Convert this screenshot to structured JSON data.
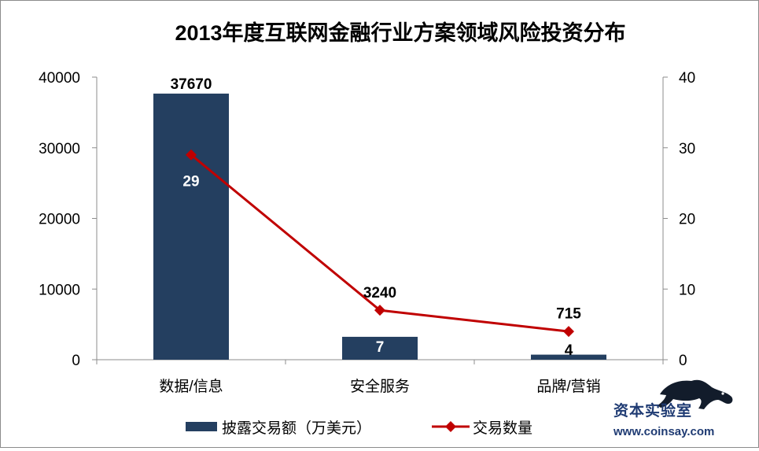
{
  "chart_data": {
    "type": "bar",
    "title": "2013年度互联网金融行业方案领域风险投资分布",
    "categories": [
      "数据/信息",
      "安全服务",
      "品牌/营销"
    ],
    "series": [
      {
        "name": "披露交易额（万美元）",
        "type": "bar",
        "axis": "left",
        "color": "#243f60",
        "values": [
          37670,
          3240,
          715
        ]
      },
      {
        "name": "交易数量",
        "type": "line",
        "axis": "right",
        "color": "#c00000",
        "marker": "diamond",
        "values": [
          29,
          7,
          4
        ]
      }
    ],
    "y_left": {
      "lim": [
        0,
        40000
      ],
      "ticks": [
        0,
        10000,
        20000,
        30000,
        40000
      ]
    },
    "y_right": {
      "lim": [
        0,
        40
      ],
      "ticks": [
        0,
        10,
        20,
        30,
        40
      ]
    },
    "legend": "bottom",
    "grid": false
  },
  "watermark": {
    "name": "资本实验室",
    "url": "www.coinsay.com"
  }
}
